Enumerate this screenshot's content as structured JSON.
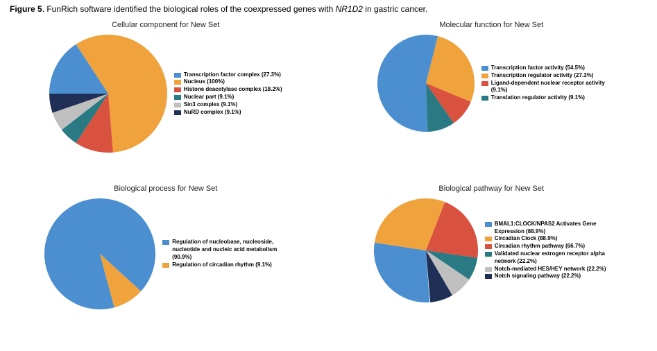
{
  "caption_prefix": "Figure 5",
  "caption_text_1": ". FunRich software identified the biological roles of the coexpressed genes with ",
  "caption_italic": "NR1D2",
  "caption_text_2": " in gastric cancer.",
  "palette": {
    "blue": "#4b8fd1",
    "orange": "#f0a23c",
    "red": "#d9513f",
    "teal": "#2a7a84",
    "navy": "#1f2f56",
    "grey": "#bfbfbf"
  },
  "panels": [
    {
      "id": "cellular_component",
      "title": "Cellular component for New Set",
      "pie_diameter": 170,
      "legend_entries": [
        {
          "color": "#4b8fd1",
          "label": "Transcription factor complex (27.3%)"
        },
        {
          "color": "#f0a23c",
          "label": "Nucleus (100%)"
        },
        {
          "color": "#d9513f",
          "label": "Histone deacetylase complex (18.2%)"
        },
        {
          "color": "#2a7a84",
          "label": "Nuclear part (9.1%)"
        },
        {
          "color": "#bfbfbf",
          "label": "Sin3 complex (9.1%)"
        },
        {
          "color": "#1f2f56",
          "label": "NuRD complex (9.1%)"
        }
      ],
      "slices": [
        {
          "color": "#4b8fd1",
          "pct": 15.8
        },
        {
          "color": "#f0a23c",
          "pct": 57.9
        },
        {
          "color": "#d9513f",
          "pct": 10.5
        },
        {
          "color": "#2a7a84",
          "pct": 5.27
        },
        {
          "color": "#bfbfbf",
          "pct": 5.27
        },
        {
          "color": "#1f2f56",
          "pct": 5.27
        }
      ],
      "start_angle": -90
    },
    {
      "id": "molecular_function",
      "title": "Molecular function for New Set",
      "pie_diameter": 140,
      "legend_entries": [
        {
          "color": "#4b8fd1",
          "label": "Transcription factor activity (54.5%)"
        },
        {
          "color": "#f0a23c",
          "label": "Transcription regulator activity (27.3%)"
        },
        {
          "color": "#d9513f",
          "label": "Ligand-dependent nuclear receptor activity (9.1%)"
        },
        {
          "color": "#2a7a84",
          "label": "Translation regulator activity (9.1%)"
        }
      ],
      "slices": [
        {
          "color": "#4b8fd1",
          "pct": 54.5
        },
        {
          "color": "#f0a23c",
          "pct": 27.3
        },
        {
          "color": "#d9513f",
          "pct": 9.1
        },
        {
          "color": "#2a7a84",
          "pct": 9.1
        }
      ],
      "start_angle": 178
    },
    {
      "id": "biological_process",
      "title": "Biological process for New Set",
      "pie_diameter": 160,
      "legend_entries": [
        {
          "color": "#4b8fd1",
          "label": "Regulation of nucleobase, nucleoside, nucleotide and nucleic acid metabolism (90.9%)"
        },
        {
          "color": "#f0a23c",
          "label": "Regulation of circadian rhythm (9.1%)"
        }
      ],
      "slices": [
        {
          "color": "#4b8fd1",
          "pct": 90.9
        },
        {
          "color": "#f0a23c",
          "pct": 9.1
        }
      ],
      "start_angle": 165
    },
    {
      "id": "biological_pathway",
      "title": "Biological pathway for New Set",
      "pie_diameter": 150,
      "legend_entries": [
        {
          "color": "#4b8fd1",
          "label": "BMAL1:CLOCK/NPAS2 Activates Gene Expression (88.9%)"
        },
        {
          "color": "#f0a23c",
          "label": "Circadian Clock (88.9%)"
        },
        {
          "color": "#d9513f",
          "label": "Circadian rhythm pathway (66.7%)"
        },
        {
          "color": "#2a7a84",
          "label": "Validated nuclear estrogen receptor alpha network (22.2%)"
        },
        {
          "color": "#bfbfbf",
          "label": "Notch-mediated HES/HEY network (22.2%)"
        },
        {
          "color": "#1f2f56",
          "label": "Notch signaling pathway (22.2%)"
        }
      ],
      "slices": [
        {
          "color": "#4b8fd1",
          "pct": 28.52
        },
        {
          "color": "#f0a23c",
          "pct": 28.52
        },
        {
          "color": "#d9513f",
          "pct": 21.4
        },
        {
          "color": "#2a7a84",
          "pct": 7.12
        },
        {
          "color": "#bfbfbf",
          "pct": 7.12
        },
        {
          "color": "#1f2f56",
          "pct": 7.12
        }
      ],
      "start_angle": 176
    }
  ]
}
